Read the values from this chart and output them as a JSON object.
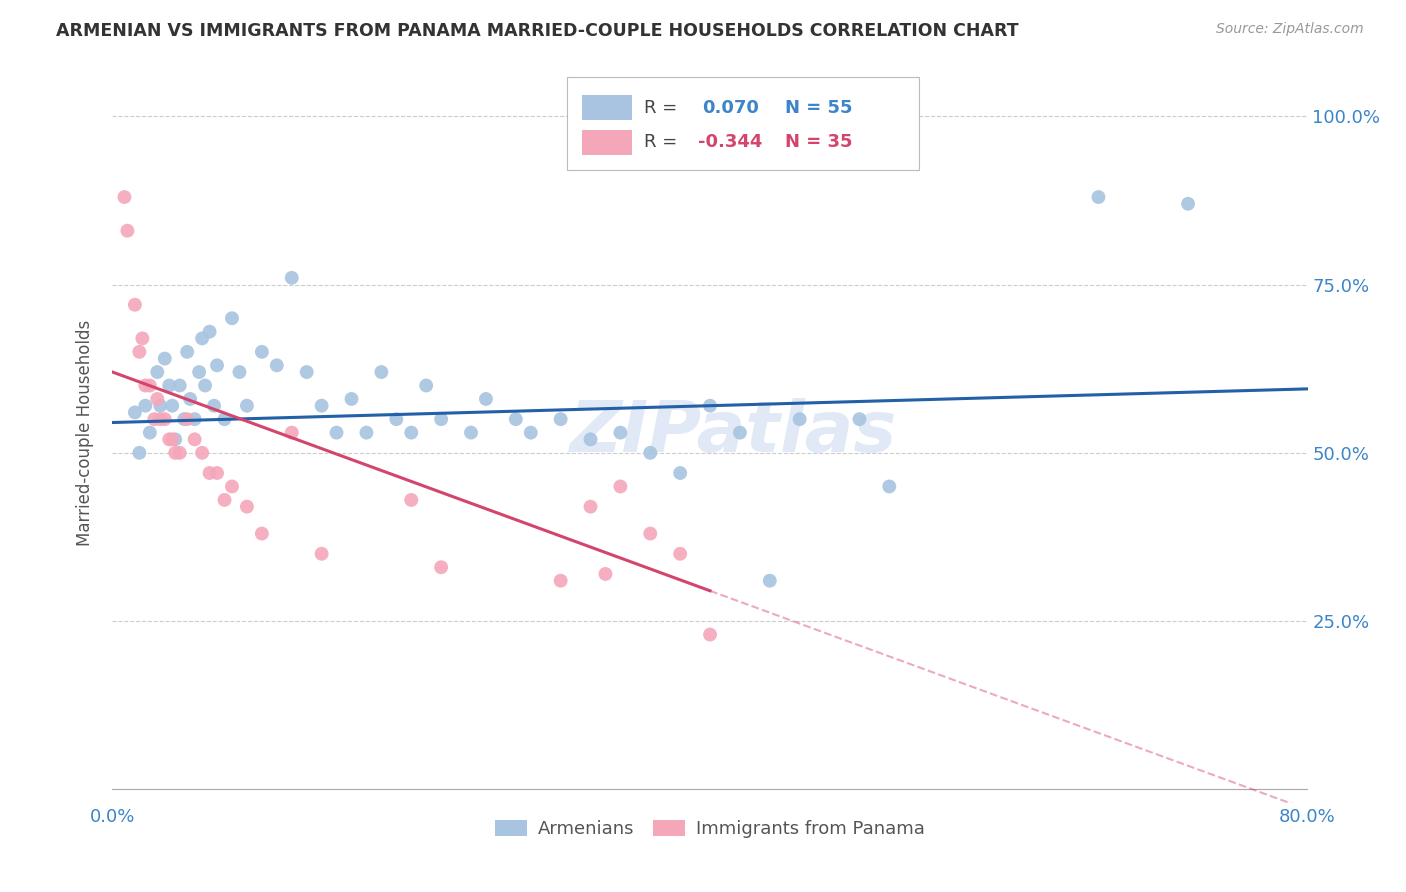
{
  "title": "ARMENIAN VS IMMIGRANTS FROM PANAMA MARRIED-COUPLE HOUSEHOLDS CORRELATION CHART",
  "source": "Source: ZipAtlas.com",
  "ylabel": "Married-couple Households",
  "xlim": [
    0,
    0.8
  ],
  "ylim": [
    -0.02,
    1.08
  ],
  "ytick_values": [
    0.0,
    0.25,
    0.5,
    0.75,
    1.0
  ],
  "xtick_values": [
    0.0,
    0.1,
    0.2,
    0.3,
    0.4,
    0.5,
    0.6,
    0.7,
    0.8
  ],
  "legend_armenians": "Armenians",
  "legend_panama": "Immigrants from Panama",
  "r_armenians": 0.07,
  "n_armenians": 55,
  "r_panama": -0.344,
  "n_panama": 35,
  "armenians_color": "#a8c4e0",
  "panama_color": "#f4a7b9",
  "line_armenians_color": "#2460a7",
  "line_panama_color": "#d4456e",
  "armenians_x": [
    0.015,
    0.018,
    0.022,
    0.025,
    0.03,
    0.032,
    0.035,
    0.038,
    0.04,
    0.042,
    0.045,
    0.048,
    0.05,
    0.052,
    0.055,
    0.058,
    0.06,
    0.062,
    0.065,
    0.068,
    0.07,
    0.075,
    0.08,
    0.085,
    0.09,
    0.1,
    0.11,
    0.12,
    0.13,
    0.14,
    0.15,
    0.16,
    0.17,
    0.18,
    0.19,
    0.2,
    0.21,
    0.22,
    0.24,
    0.25,
    0.27,
    0.28,
    0.3,
    0.32,
    0.34,
    0.36,
    0.38,
    0.4,
    0.42,
    0.44,
    0.46,
    0.5,
    0.52,
    0.66,
    0.72
  ],
  "armenians_y": [
    0.56,
    0.5,
    0.57,
    0.53,
    0.62,
    0.57,
    0.64,
    0.6,
    0.57,
    0.52,
    0.6,
    0.55,
    0.65,
    0.58,
    0.55,
    0.62,
    0.67,
    0.6,
    0.68,
    0.57,
    0.63,
    0.55,
    0.7,
    0.62,
    0.57,
    0.65,
    0.63,
    0.76,
    0.62,
    0.57,
    0.53,
    0.58,
    0.53,
    0.62,
    0.55,
    0.53,
    0.6,
    0.55,
    0.53,
    0.58,
    0.55,
    0.53,
    0.55,
    0.52,
    0.53,
    0.5,
    0.47,
    0.57,
    0.53,
    0.31,
    0.55,
    0.55,
    0.45,
    0.88,
    0.87
  ],
  "panama_x": [
    0.008,
    0.01,
    0.015,
    0.018,
    0.02,
    0.022,
    0.025,
    0.028,
    0.03,
    0.032,
    0.035,
    0.038,
    0.04,
    0.042,
    0.045,
    0.05,
    0.055,
    0.06,
    0.065,
    0.07,
    0.075,
    0.08,
    0.09,
    0.1,
    0.12,
    0.14,
    0.2,
    0.22,
    0.3,
    0.32,
    0.33,
    0.34,
    0.36,
    0.38,
    0.4
  ],
  "panama_y": [
    0.88,
    0.83,
    0.72,
    0.65,
    0.67,
    0.6,
    0.6,
    0.55,
    0.58,
    0.55,
    0.55,
    0.52,
    0.52,
    0.5,
    0.5,
    0.55,
    0.52,
    0.5,
    0.47,
    0.47,
    0.43,
    0.45,
    0.42,
    0.38,
    0.53,
    0.35,
    0.43,
    0.33,
    0.31,
    0.42,
    0.32,
    0.45,
    0.38,
    0.35,
    0.23
  ],
  "line_arm_x0": 0.0,
  "line_arm_y0": 0.545,
  "line_arm_x1": 0.8,
  "line_arm_y1": 0.595,
  "line_pan_x0": 0.0,
  "line_pan_y0": 0.62,
  "line_pan_x1": 0.4,
  "line_pan_y1": 0.295,
  "line_pan_dash_x1": 0.8,
  "line_pan_dash_y1": -0.03
}
